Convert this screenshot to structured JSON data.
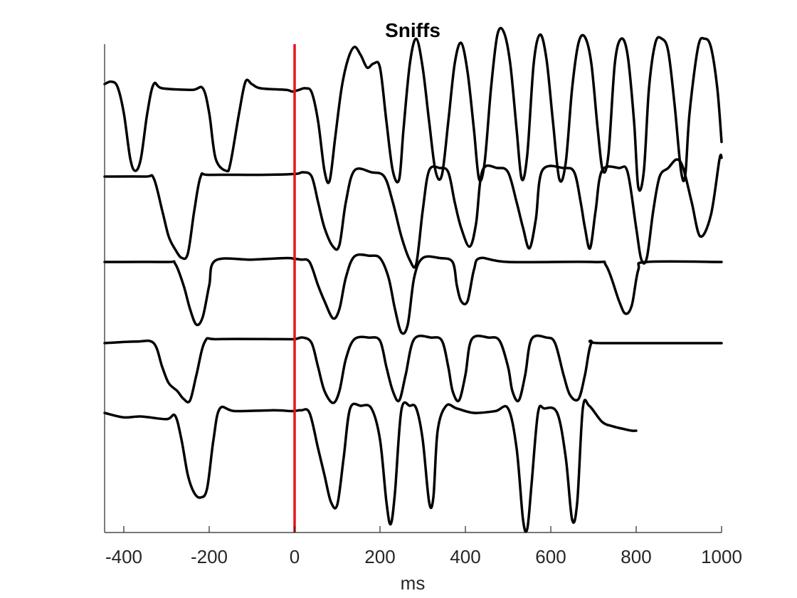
{
  "chart_data": {
    "type": "line",
    "title": "Sniffs",
    "xlabel": "ms",
    "ylabel": "",
    "xlim": [
      -445,
      1000
    ],
    "x_ticks": [
      -400,
      -200,
      0,
      200,
      400,
      600,
      800,
      1000
    ],
    "x_tick_labels": [
      "-400",
      "-200",
      "0",
      "200",
      "400",
      "600",
      "800",
      "1000"
    ],
    "y_ticks_visible": false,
    "grid": false,
    "marker_line": {
      "x": 0,
      "color": "#e8141b"
    },
    "trace_color": "#000000",
    "series": [
      {
        "points": [
          [
            -445,
            0.05
          ],
          [
            -430,
            0.08
          ],
          [
            -415,
            0.02
          ],
          [
            -400,
            -0.3
          ],
          [
            -385,
            -0.85
          ],
          [
            -373,
            -1.0
          ],
          [
            -360,
            -0.85
          ],
          [
            -345,
            -0.3
          ],
          [
            -330,
            0.05
          ],
          [
            -310,
            0.0
          ],
          [
            -240,
            -0.02
          ],
          [
            -215,
            0.0
          ],
          [
            -200,
            -0.3
          ],
          [
            -185,
            -0.85
          ],
          [
            -160,
            -1.0
          ],
          [
            -150,
            -0.9
          ],
          [
            -130,
            -0.3
          ],
          [
            -115,
            0.08
          ],
          [
            -100,
            0.05
          ],
          [
            -80,
            0.0
          ],
          [
            -20,
            -0.02
          ],
          [
            -5,
            -0.04
          ],
          [
            10,
            -0.02
          ],
          [
            25,
            0.0
          ],
          [
            40,
            -0.05
          ],
          [
            55,
            -0.4
          ],
          [
            70,
            -1.0
          ],
          [
            82,
            -1.12
          ],
          [
            95,
            -0.6
          ],
          [
            110,
            0.0
          ],
          [
            125,
            0.35
          ],
          [
            140,
            0.5
          ],
          [
            155,
            0.4
          ],
          [
            170,
            0.25
          ],
          [
            185,
            0.3
          ],
          [
            200,
            0.25
          ],
          [
            215,
            -0.4
          ],
          [
            230,
            -1.0
          ],
          [
            245,
            -1.1
          ],
          [
            255,
            -0.5
          ],
          [
            270,
            0.3
          ],
          [
            285,
            0.6
          ],
          [
            300,
            0.25
          ],
          [
            315,
            -0.4
          ],
          [
            330,
            -1.0
          ],
          [
            345,
            -1.05
          ],
          [
            360,
            -0.4
          ],
          [
            375,
            0.3
          ],
          [
            390,
            0.55
          ],
          [
            405,
            0.2
          ],
          [
            420,
            -0.5
          ],
          [
            432,
            -1.1
          ],
          [
            445,
            -0.9
          ],
          [
            460,
            0.0
          ],
          [
            475,
            0.65
          ],
          [
            490,
            0.68
          ],
          [
            505,
            0.3
          ],
          [
            520,
            -0.5
          ],
          [
            532,
            -1.1
          ],
          [
            545,
            -0.8
          ],
          [
            560,
            0.3
          ],
          [
            575,
            0.65
          ],
          [
            590,
            0.35
          ],
          [
            605,
            -0.4
          ],
          [
            620,
            -1.1
          ],
          [
            635,
            -0.9
          ],
          [
            650,
            0.0
          ],
          [
            665,
            0.55
          ],
          [
            680,
            0.62
          ],
          [
            695,
            0.3
          ],
          [
            710,
            -0.5
          ],
          [
            722,
            -1.0
          ],
          [
            735,
            -0.8
          ],
          [
            750,
            0.3
          ],
          [
            765,
            0.6
          ],
          [
            780,
            0.4
          ],
          [
            795,
            -0.4
          ],
          [
            805,
            -1.2
          ],
          [
            818,
            -1.0
          ],
          [
            830,
            0.0
          ],
          [
            845,
            0.55
          ],
          [
            860,
            0.6
          ],
          [
            875,
            0.45
          ],
          [
            890,
            -0.2
          ],
          [
            905,
            -1.0
          ],
          [
            915,
            -1.05
          ],
          [
            925,
            -0.3
          ],
          [
            945,
            0.5
          ],
          [
            960,
            0.6
          ],
          [
            975,
            0.5
          ],
          [
            990,
            0.0
          ],
          [
            1000,
            -0.65
          ]
        ]
      },
      {
        "points": [
          [
            -445,
            0.0
          ],
          [
            -350,
            0.0
          ],
          [
            -330,
            -0.02
          ],
          [
            -310,
            -0.4
          ],
          [
            -295,
            -0.7
          ],
          [
            -280,
            -0.85
          ],
          [
            -265,
            -0.95
          ],
          [
            -250,
            -0.9
          ],
          [
            -235,
            -0.4
          ],
          [
            -220,
            0.0
          ],
          [
            -200,
            0.02
          ],
          [
            -80,
            0.02
          ],
          [
            0,
            0.03
          ],
          [
            20,
            0.05
          ],
          [
            40,
            0.0
          ],
          [
            55,
            -0.3
          ],
          [
            70,
            -0.6
          ],
          [
            90,
            -0.82
          ],
          [
            105,
            -0.8
          ],
          [
            120,
            -0.3
          ],
          [
            140,
            0.07
          ],
          [
            180,
            0.05
          ],
          [
            210,
            0.0
          ],
          [
            230,
            -0.3
          ],
          [
            250,
            -0.7
          ],
          [
            270,
            -0.98
          ],
          [
            285,
            -1.02
          ],
          [
            300,
            -0.4
          ],
          [
            315,
            0.07
          ],
          [
            340,
            0.1
          ],
          [
            360,
            0.05
          ],
          [
            375,
            -0.3
          ],
          [
            390,
            -0.6
          ],
          [
            410,
            -0.82
          ],
          [
            425,
            -0.55
          ],
          [
            440,
            0.07
          ],
          [
            475,
            0.1
          ],
          [
            500,
            0.05
          ],
          [
            520,
            -0.3
          ],
          [
            535,
            -0.6
          ],
          [
            550,
            -0.84
          ],
          [
            565,
            -0.5
          ],
          [
            580,
            0.07
          ],
          [
            630,
            0.1
          ],
          [
            655,
            0.05
          ],
          [
            670,
            -0.3
          ],
          [
            680,
            -0.6
          ],
          [
            692,
            -0.84
          ],
          [
            705,
            -0.4
          ],
          [
            720,
            0.07
          ],
          [
            760,
            0.1
          ],
          [
            780,
            0.05
          ],
          [
            800,
            -0.6
          ],
          [
            812,
            -0.97
          ],
          [
            825,
            -0.95
          ],
          [
            840,
            -0.4
          ],
          [
            855,
            0.0
          ],
          [
            875,
            0.1
          ],
          [
            895,
            0.2
          ],
          [
            910,
            0.1
          ],
          [
            930,
            -0.3
          ],
          [
            950,
            -0.7
          ],
          [
            975,
            -0.45
          ],
          [
            995,
            0.2
          ],
          [
            1000,
            0.22
          ]
        ]
      },
      {
        "points": [
          [
            -445,
            0.0
          ],
          [
            -300,
            0.0
          ],
          [
            -280,
            -0.02
          ],
          [
            -260,
            -0.3
          ],
          [
            -245,
            -0.6
          ],
          [
            -230,
            -0.8
          ],
          [
            -215,
            -0.7
          ],
          [
            -200,
            -0.3
          ],
          [
            -185,
            0.02
          ],
          [
            -100,
            0.03
          ],
          [
            -20,
            0.05
          ],
          [
            0,
            0.04
          ],
          [
            15,
            0.03
          ],
          [
            35,
            0.0
          ],
          [
            55,
            -0.3
          ],
          [
            70,
            -0.5
          ],
          [
            90,
            -0.72
          ],
          [
            105,
            -0.6
          ],
          [
            120,
            -0.2
          ],
          [
            140,
            0.07
          ],
          [
            175,
            0.08
          ],
          [
            200,
            0.05
          ],
          [
            220,
            -0.2
          ],
          [
            235,
            -0.6
          ],
          [
            250,
            -0.9
          ],
          [
            265,
            -0.8
          ],
          [
            280,
            -0.2
          ],
          [
            300,
            0.05
          ],
          [
            340,
            0.05
          ],
          [
            370,
            0.0
          ],
          [
            380,
            -0.3
          ],
          [
            390,
            -0.5
          ],
          [
            405,
            -0.5
          ],
          [
            420,
            -0.1
          ],
          [
            435,
            0.05
          ],
          [
            500,
            0.0
          ],
          [
            700,
            0.0
          ],
          [
            730,
            -0.05
          ],
          [
            760,
            -0.5
          ],
          [
            775,
            -0.66
          ],
          [
            790,
            -0.55
          ],
          [
            805,
            -0.1
          ],
          [
            825,
            0.0
          ],
          [
            1000,
            0.0
          ]
        ]
      },
      {
        "points": [
          [
            -445,
            0.0
          ],
          [
            -370,
            0.02
          ],
          [
            -330,
            0.0
          ],
          [
            -310,
            -0.3
          ],
          [
            -295,
            -0.5
          ],
          [
            -275,
            -0.6
          ],
          [
            -260,
            -0.7
          ],
          [
            -245,
            -0.72
          ],
          [
            -230,
            -0.4
          ],
          [
            -210,
            0.02
          ],
          [
            -180,
            0.05
          ],
          [
            -30,
            0.05
          ],
          [
            0,
            0.05
          ],
          [
            20,
            0.07
          ],
          [
            40,
            0.0
          ],
          [
            55,
            -0.3
          ],
          [
            70,
            -0.6
          ],
          [
            90,
            -0.75
          ],
          [
            105,
            -0.6
          ],
          [
            120,
            -0.2
          ],
          [
            140,
            0.05
          ],
          [
            175,
            0.07
          ],
          [
            200,
            0.03
          ],
          [
            215,
            -0.3
          ],
          [
            230,
            -0.6
          ],
          [
            245,
            -0.72
          ],
          [
            260,
            -0.4
          ],
          [
            280,
            0.05
          ],
          [
            320,
            0.07
          ],
          [
            345,
            0.03
          ],
          [
            360,
            -0.3
          ],
          [
            370,
            -0.6
          ],
          [
            385,
            -0.72
          ],
          [
            400,
            -0.4
          ],
          [
            415,
            0.05
          ],
          [
            455,
            0.07
          ],
          [
            480,
            0.03
          ],
          [
            500,
            -0.3
          ],
          [
            510,
            -0.6
          ],
          [
            525,
            -0.72
          ],
          [
            540,
            -0.4
          ],
          [
            555,
            0.05
          ],
          [
            590,
            0.07
          ],
          [
            610,
            0.0
          ],
          [
            630,
            -0.4
          ],
          [
            645,
            -0.65
          ],
          [
            665,
            -0.7
          ],
          [
            680,
            -0.4
          ],
          [
            695,
            0.0
          ],
          [
            720,
            0.0
          ],
          [
            1000,
            0.0
          ]
        ]
      },
      {
        "points": [
          [
            -445,
            0.0
          ],
          [
            -400,
            -0.05
          ],
          [
            -360,
            -0.04
          ],
          [
            -300,
            -0.07
          ],
          [
            -280,
            -0.03
          ],
          [
            -265,
            -0.3
          ],
          [
            -250,
            -0.7
          ],
          [
            -235,
            -0.9
          ],
          [
            -220,
            -0.95
          ],
          [
            -205,
            -0.85
          ],
          [
            -190,
            -0.3
          ],
          [
            -175,
            0.05
          ],
          [
            -140,
            0.02
          ],
          [
            -50,
            0.03
          ],
          [
            -5,
            0.02
          ],
          [
            15,
            0.03
          ],
          [
            35,
            0.0
          ],
          [
            55,
            -0.4
          ],
          [
            70,
            -0.7
          ],
          [
            85,
            -1.0
          ],
          [
            100,
            -1.03
          ],
          [
            115,
            -0.5
          ],
          [
            130,
            0.05
          ],
          [
            155,
            0.08
          ],
          [
            180,
            0.05
          ],
          [
            200,
            -0.3
          ],
          [
            215,
            -1.0
          ],
          [
            225,
            -1.25
          ],
          [
            235,
            -0.9
          ],
          [
            250,
            0.03
          ],
          [
            270,
            0.08
          ],
          [
            285,
            0.05
          ],
          [
            300,
            -0.3
          ],
          [
            315,
            -1.0
          ],
          [
            325,
            -0.95
          ],
          [
            335,
            -0.2
          ],
          [
            355,
            0.08
          ],
          [
            380,
            0.05
          ],
          [
            420,
            0.0
          ],
          [
            470,
            0.02
          ],
          [
            500,
            0.05
          ],
          [
            520,
            -0.4
          ],
          [
            535,
            -1.2
          ],
          [
            545,
            -1.3
          ],
          [
            555,
            -0.8
          ],
          [
            570,
            0.0
          ],
          [
            585,
            0.05
          ],
          [
            615,
            0.0
          ],
          [
            635,
            -0.5
          ],
          [
            650,
            -1.2
          ],
          [
            662,
            -1.0
          ],
          [
            675,
            0.05
          ],
          [
            690,
            0.08
          ],
          [
            720,
            -0.1
          ],
          [
            745,
            -0.15
          ],
          [
            770,
            -0.18
          ],
          [
            790,
            -0.2
          ],
          [
            800,
            -0.2
          ]
        ]
      }
    ]
  }
}
